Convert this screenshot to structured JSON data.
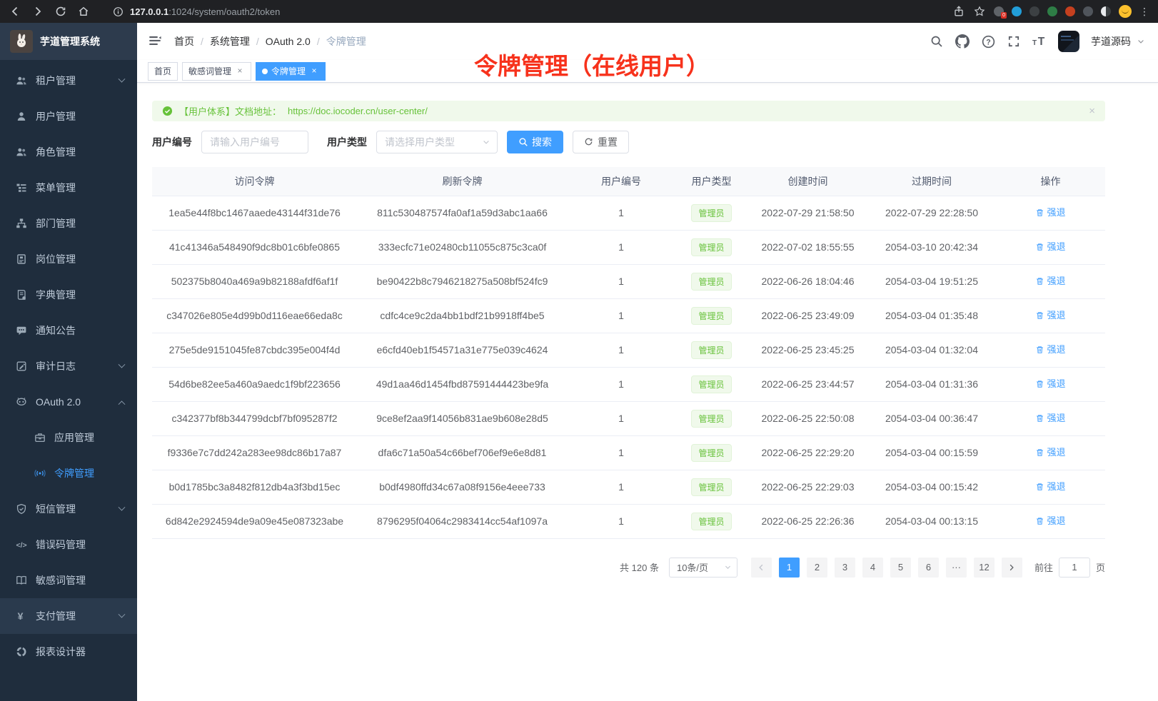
{
  "colors": {
    "accent": "#409eff",
    "success": "#67c23a",
    "annotation": "#f7321c",
    "sidebar_bg": "#1f2d3d"
  },
  "icons": {
    "close": "×",
    "ellipsis_page": "···"
  },
  "browser": {
    "url_host": "127.0.0.1",
    "url_rest": ":1024/system/oauth2/token",
    "extension_badge": "0"
  },
  "sidebar": {
    "title": "芋道管理系统",
    "items": [
      {
        "id": "tenant",
        "icon": "users",
        "label": "租户管理",
        "chevron": "down"
      },
      {
        "id": "user",
        "icon": "user",
        "label": "用户管理"
      },
      {
        "id": "role",
        "icon": "role",
        "label": "角色管理"
      },
      {
        "id": "menu",
        "icon": "menu",
        "label": "菜单管理"
      },
      {
        "id": "dept",
        "icon": "org",
        "label": "部门管理"
      },
      {
        "id": "post",
        "icon": "post",
        "label": "岗位管理"
      },
      {
        "id": "dict",
        "icon": "dict",
        "label": "字典管理"
      },
      {
        "id": "notice",
        "icon": "notice",
        "label": "通知公告"
      },
      {
        "id": "audit-log",
        "icon": "audit",
        "label": "审计日志",
        "chevron": "down"
      },
      {
        "id": "oauth2",
        "icon": "oauth",
        "label": "OAuth 2.0",
        "chevron": "up"
      },
      {
        "id": "oauth2-app",
        "icon": "app",
        "label": "应用管理",
        "sub": true
      },
      {
        "id": "oauth2-token",
        "icon": "token",
        "label": "令牌管理",
        "sub": true,
        "active": true
      },
      {
        "id": "sms",
        "icon": "sms",
        "label": "短信管理",
        "chevron": "down"
      },
      {
        "id": "error-code",
        "icon": "errcode",
        "label": "错误码管理"
      },
      {
        "id": "sensitive-word",
        "icon": "sensitive",
        "label": "敏感词管理"
      },
      {
        "id": "pay",
        "icon": "pay",
        "label": "支付管理",
        "chevron": "down",
        "hovered": true
      },
      {
        "id": "report-designer",
        "icon": "report",
        "label": "报表设计器"
      }
    ]
  },
  "navbar": {
    "breadcrumb": [
      "首页",
      "系统管理",
      "OAuth 2.0",
      "令牌管理"
    ],
    "user_name": "芋道源码"
  },
  "tags": [
    {
      "label": "首页",
      "closable": false,
      "active": false
    },
    {
      "label": "敏感词管理",
      "closable": true,
      "active": false
    },
    {
      "label": "令牌管理",
      "closable": true,
      "active": true
    }
  ],
  "annotation": {
    "text": "令牌管理（在线用户）"
  },
  "alert": {
    "prefix": "【用户体系】文档地址：",
    "link": "https://doc.iocoder.cn/user-center/"
  },
  "filters": {
    "user_id_label": "用户编号",
    "user_id_placeholder": "请输入用户编号",
    "user_type_label": "用户类型",
    "user_type_placeholder": "请选择用户类型",
    "search_label": "搜索",
    "reset_label": "重置"
  },
  "table": {
    "columns": [
      "访问令牌",
      "刷新令牌",
      "用户编号",
      "用户类型",
      "创建时间",
      "过期时间",
      "操作"
    ],
    "action_label": "强退",
    "rows": [
      {
        "access": "1ea5e44f8bc1467aaede43144f31de76",
        "refresh": "811c530487574fa0af1a59d3abc1aa66",
        "user_id": "1",
        "user_type": "管理员",
        "created": "2022-07-29 21:58:50",
        "expires": "2022-07-29 22:28:50"
      },
      {
        "access": "41c41346a548490f9dc8b01c6bfe0865",
        "refresh": "333ecfc71e02480cb11055c875c3ca0f",
        "user_id": "1",
        "user_type": "管理员",
        "created": "2022-07-02 18:55:55",
        "expires": "2054-03-10 20:42:34"
      },
      {
        "access": "502375b8040a469a9b82188afdf6af1f",
        "refresh": "be90422b8c7946218275a508bf524fc9",
        "user_id": "1",
        "user_type": "管理员",
        "created": "2022-06-26 18:04:46",
        "expires": "2054-03-04 19:51:25"
      },
      {
        "access": "c347026e805e4d99b0d116eae66eda8c",
        "refresh": "cdfc4ce9c2da4bb1bdf21b9918ff4be5",
        "user_id": "1",
        "user_type": "管理员",
        "created": "2022-06-25 23:49:09",
        "expires": "2054-03-04 01:35:48"
      },
      {
        "access": "275e5de9151045fe87cbdc395e004f4d",
        "refresh": "e6cfd40eb1f54571a31e775e039c4624",
        "user_id": "1",
        "user_type": "管理员",
        "created": "2022-06-25 23:45:25",
        "expires": "2054-03-04 01:32:04"
      },
      {
        "access": "54d6be82ee5a460a9aedc1f9bf223656",
        "refresh": "49d1aa46d1454fbd87591444423be9fa",
        "user_id": "1",
        "user_type": "管理员",
        "created": "2022-06-25 23:44:57",
        "expires": "2054-03-04 01:31:36"
      },
      {
        "access": "c342377bf8b344799dcbf7bf095287f2",
        "refresh": "9ce8ef2aa9f14056b831ae9b608e28d5",
        "user_id": "1",
        "user_type": "管理员",
        "created": "2022-06-25 22:50:08",
        "expires": "2054-03-04 00:36:47"
      },
      {
        "access": "f9336e7c7dd242a283ee98dc86b17a87",
        "refresh": "dfa6c71a50a54c66bef706ef9e6e8d81",
        "user_id": "1",
        "user_type": "管理员",
        "created": "2022-06-25 22:29:20",
        "expires": "2054-03-04 00:15:59"
      },
      {
        "access": "b0d1785bc3a8482f812db4a3f3bd15ec",
        "refresh": "b0df4980ffd34c67a08f9156e4eee733",
        "user_id": "1",
        "user_type": "管理员",
        "created": "2022-06-25 22:29:03",
        "expires": "2054-03-04 00:15:42"
      },
      {
        "access": "6d842e2924594de9a09e45e087323abe",
        "refresh": "8796295f04064c2983414cc54af1097a",
        "user_id": "1",
        "user_type": "管理员",
        "created": "2022-06-25 22:26:36",
        "expires": "2054-03-04 00:13:15"
      }
    ]
  },
  "pagination": {
    "total": "共 120 条",
    "page_size": "10条/页",
    "pages": [
      "1",
      "2",
      "3",
      "4",
      "5",
      "6",
      "···",
      "12"
    ],
    "active_page": "1",
    "goto_label": "前往",
    "goto_value": "1",
    "page_unit": "页"
  }
}
